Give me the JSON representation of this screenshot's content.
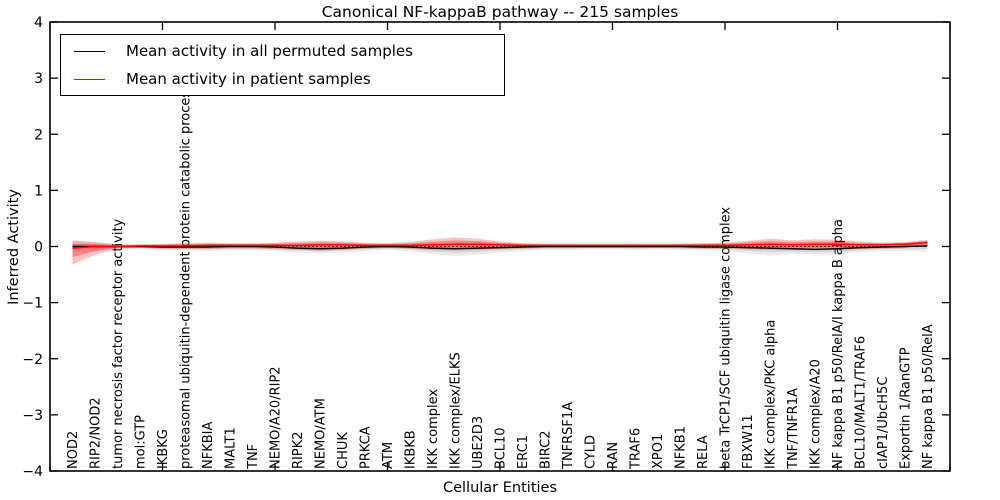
{
  "chart_data": {
    "type": "line",
    "title": "Canonical NF-kappaB pathway -- 215 samples",
    "xlabel": "Cellular Entities",
    "ylabel": "Inferred Activity",
    "ylim": [
      -4,
      4
    ],
    "ytick_values": [
      -4,
      -3,
      -2,
      -1,
      0,
      1,
      2,
      3,
      4
    ],
    "ytick_labels": [
      "−4",
      "−3",
      "−2",
      "−1",
      "0",
      "1",
      "2",
      "3",
      "4"
    ],
    "xtick_step": 5,
    "grid": false,
    "legend_position": "upper left",
    "zero_line": 0,
    "colors": {
      "permuted": "#000000",
      "patient": "#ff0000",
      "permuted_band": "#808080",
      "patient_band": "#ff0000"
    },
    "legend": [
      {
        "label": "Mean activity in all permuted samples",
        "color": "#000000"
      },
      {
        "label": "Mean activity in patient samples",
        "color": "#ff0000"
      }
    ],
    "categories": [
      "NOD2",
      "RIP2/NOD2",
      "tumor necrosis factor receptor activity",
      "mol:GTP",
      "IKBKG",
      "proteasomal ubiquitin-dependent protein catabolic process",
      "NFKBIA",
      "MALT1",
      "TNF",
      "NEMO/A20/RIP2",
      "RIPK2",
      "NEMO/ATM",
      "CHUK",
      "PRKCA",
      "ATM",
      "IKBKB",
      "IKK complex",
      "IKK complex/ELKS",
      "UBE2D3",
      "BCL10",
      "ERC1",
      "BIRC2",
      "TNFRSF1A",
      "CYLD",
      "RAN",
      "TRAF6",
      "XPO1",
      "NFKB1",
      "RELA",
      "beta TrCP1/SCF ubiquitin ligase complex",
      "FBXW11",
      "IKK complex/PKC alpha",
      "TNF/TNFR1A",
      "IKK complex/A20",
      "NF kappa B1 p50/RelA/I kappa B alpha",
      "BCL10/MALT1/TRAF6",
      "cIAP1/UbcH5C",
      "Exportin 1/RanGTP",
      "NF kappa B1 p50/RelA"
    ],
    "series": [
      {
        "name": "Mean activity in all permuted samples",
        "values": [
          0.0,
          0.0,
          0.0,
          0.0,
          -0.01,
          -0.01,
          -0.01,
          0.0,
          0.0,
          -0.01,
          -0.03,
          -0.04,
          -0.03,
          -0.01,
          0.0,
          -0.01,
          -0.03,
          -0.04,
          -0.03,
          -0.02,
          -0.01,
          0.0,
          0.0,
          0.0,
          0.0,
          0.0,
          0.0,
          0.0,
          -0.01,
          -0.01,
          -0.02,
          -0.03,
          -0.04,
          -0.05,
          -0.04,
          -0.02,
          -0.01,
          0.0,
          0.01
        ]
      },
      {
        "name": "Mean activity in patient samples",
        "values": [
          -0.03,
          0.0,
          0.0,
          0.01,
          0.01,
          0.01,
          0.02,
          0.02,
          0.02,
          0.02,
          0.02,
          0.03,
          0.03,
          0.02,
          0.02,
          0.02,
          0.03,
          0.04,
          0.04,
          0.03,
          0.02,
          0.02,
          0.02,
          0.02,
          0.02,
          0.02,
          0.02,
          0.02,
          0.02,
          0.02,
          0.03,
          0.04,
          0.03,
          0.04,
          0.04,
          0.03,
          0.03,
          0.04,
          0.07
        ]
      }
    ],
    "bands": [
      {
        "name": "permuted range",
        "lower": [
          -0.1,
          -0.09,
          -0.03,
          -0.03,
          -0.05,
          -0.07,
          -0.08,
          -0.06,
          -0.06,
          -0.08,
          -0.11,
          -0.13,
          -0.11,
          -0.08,
          -0.06,
          -0.08,
          -0.14,
          -0.17,
          -0.15,
          -0.11,
          -0.08,
          -0.06,
          -0.06,
          -0.05,
          -0.05,
          -0.06,
          -0.05,
          -0.06,
          -0.07,
          -0.08,
          -0.12,
          -0.16,
          -0.13,
          -0.15,
          -0.14,
          -0.1,
          -0.08,
          -0.08,
          -0.09
        ],
        "upper": [
          0.1,
          0.08,
          0.03,
          0.03,
          0.04,
          0.05,
          0.05,
          0.05,
          0.05,
          0.06,
          0.07,
          0.08,
          0.08,
          0.06,
          0.05,
          0.06,
          0.07,
          0.07,
          0.07,
          0.06,
          0.05,
          0.05,
          0.05,
          0.04,
          0.04,
          0.05,
          0.04,
          0.05,
          0.05,
          0.06,
          0.07,
          0.07,
          0.07,
          0.07,
          0.07,
          0.06,
          0.06,
          0.07,
          0.1
        ]
      },
      {
        "name": "patient range",
        "lower": [
          -0.32,
          -0.15,
          -0.04,
          -0.03,
          -0.05,
          -0.05,
          -0.05,
          -0.04,
          -0.04,
          -0.05,
          -0.06,
          -0.07,
          -0.06,
          -0.04,
          -0.03,
          -0.04,
          -0.06,
          -0.07,
          -0.06,
          -0.05,
          -0.04,
          -0.03,
          -0.03,
          -0.03,
          -0.03,
          -0.03,
          -0.03,
          -0.03,
          -0.04,
          -0.04,
          -0.05,
          -0.06,
          -0.06,
          -0.07,
          -0.06,
          -0.05,
          -0.04,
          -0.03,
          0.02
        ],
        "upper": [
          0.11,
          0.08,
          0.04,
          0.04,
          0.05,
          0.06,
          0.07,
          0.06,
          0.06,
          0.07,
          0.09,
          0.1,
          0.09,
          0.07,
          0.06,
          0.08,
          0.13,
          0.16,
          0.14,
          0.09,
          0.06,
          0.05,
          0.05,
          0.05,
          0.05,
          0.05,
          0.05,
          0.05,
          0.06,
          0.07,
          0.1,
          0.14,
          0.11,
          0.13,
          0.12,
          0.09,
          0.07,
          0.08,
          0.12
        ]
      }
    ]
  }
}
